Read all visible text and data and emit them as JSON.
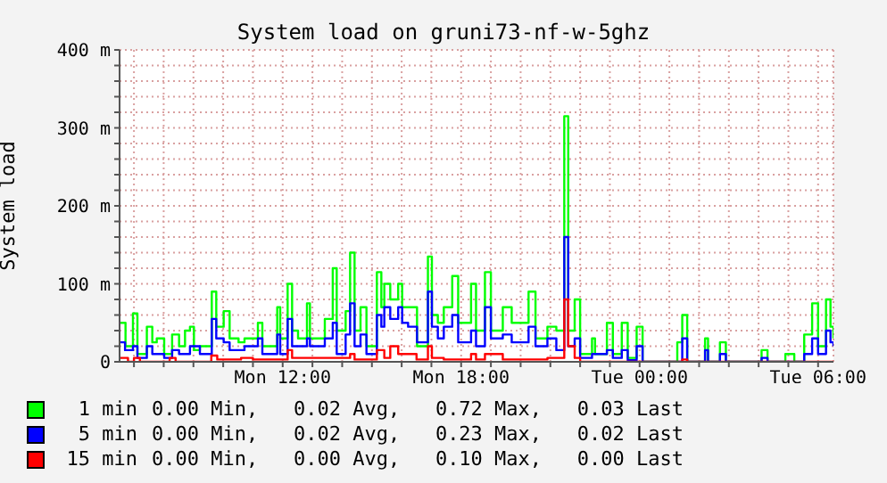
{
  "chart_data": {
    "type": "step",
    "title": "System load on gruni73-nf-w-5ghz",
    "ylabel": "System load",
    "xlim": [
      "--01-01T06:31",
      "--01-02T06:31"
    ],
    "ylim": [
      0,
      400
    ],
    "xticks": [
      {
        "value": "--01-01T07:00",
        "label": null
      },
      {
        "value": "--01-01T08:00",
        "label": null
      },
      {
        "value": "--01-01T09:00",
        "label": null
      },
      {
        "value": "--01-01T10:00",
        "label": null
      },
      {
        "value": "--01-01T11:00",
        "label": null
      },
      {
        "value": "--01-01T12:00",
        "label": "Mon 12:00"
      },
      {
        "value": "--01-01T13:00",
        "label": null
      },
      {
        "value": "--01-01T14:00",
        "label": null
      },
      {
        "value": "--01-01T15:00",
        "label": null
      },
      {
        "value": "--01-01T16:00",
        "label": null
      },
      {
        "value": "--01-01T17:00",
        "label": null
      },
      {
        "value": "--01-01T18:00",
        "label": "Mon 18:00"
      },
      {
        "value": "--01-01T19:00",
        "label": null
      },
      {
        "value": "--01-01T20:00",
        "label": null
      },
      {
        "value": "--01-01T21:00",
        "label": null
      },
      {
        "value": "--01-01T22:00",
        "label": null
      },
      {
        "value": "--01-01T23:00",
        "label": null
      },
      {
        "value": "--01-02T00:00",
        "label": "Tue 00:00"
      },
      {
        "value": "--01-02T01:00",
        "label": null
      },
      {
        "value": "--01-02T02:00",
        "label": null
      },
      {
        "value": "--01-02T03:00",
        "label": null
      },
      {
        "value": "--01-02T04:00",
        "label": null
      },
      {
        "value": "--01-02T05:00",
        "label": null
      },
      {
        "value": "--01-02T06:00",
        "label": "Tue 06:00"
      }
    ],
    "yticks": [
      0,
      {
        "value": 20,
        "label": null
      },
      {
        "value": 40,
        "label": null
      },
      {
        "value": 60,
        "label": null
      },
      {
        "value": 80,
        "label": null
      },
      {
        "value": 100,
        "label": "100 m"
      },
      {
        "value": 120,
        "label": null
      },
      {
        "value": 140,
        "label": null
      },
      {
        "value": 160,
        "label": null
      },
      {
        "value": 180,
        "label": null
      },
      {
        "value": 200,
        "label": "200 m"
      },
      {
        "value": 220,
        "label": null
      },
      {
        "value": 240,
        "label": null
      },
      {
        "value": 260,
        "label": null
      },
      {
        "value": 280,
        "label": null
      },
      {
        "value": 300,
        "label": "300 m"
      },
      {
        "value": 320,
        "label": null
      },
      {
        "value": 340,
        "label": null
      },
      {
        "value": 360,
        "label": null
      },
      {
        "value": 380,
        "label": null
      },
      {
        "value": 400,
        "label": "400 m"
      }
    ],
    "grid": true,
    "legend": "bottom",
    "annotations": [
      "0.00 Min,   0.02 Avg,   0.72 Max,   0.03 Last",
      "0.00 Min,   0.02 Avg,   0.23 Max,   0.02 Last",
      "0.00 Min,   0.00 Avg,   0.10 Max,   0.00 Last"
    ],
    "series": [
      {
        "name": "1 min",
        "color": "#00ff00",
        "x": [
          "--01-01T06:31",
          "--01-01T06:43",
          "--01-01T06:58",
          "--01-01T07:07",
          "--01-01T07:26",
          "--01-01T07:37",
          "--01-01T07:46",
          "--01-01T08:01",
          "--01-01T08:17",
          "--01-01T08:31",
          "--01-01T08:43",
          "--01-01T08:53",
          "--01-01T09:01",
          "--01-01T09:13",
          "--01-01T09:37",
          "--01-01T09:46",
          "--01-01T10:01",
          "--01-01T10:13",
          "--01-01T10:31",
          "--01-01T10:43",
          "--01-01T11:10",
          "--01-01T11:19",
          "--01-01T11:49",
          "--01-01T11:55",
          "--01-01T12:10",
          "--01-01T12:19",
          "--01-01T12:31",
          "--01-01T12:49",
          "--01-01T12:55",
          "--01-01T13:25",
          "--01-01T13:41",
          "--01-01T13:49",
          "--01-01T14:07",
          "--01-01T14:16",
          "--01-01T14:25",
          "--01-01T14:37",
          "--01-01T14:49",
          "--01-01T15:10",
          "--01-01T15:19",
          "--01-01T15:25",
          "--01-01T15:37",
          "--01-01T15:53",
          "--01-01T16:01",
          "--01-01T16:13",
          "--01-01T16:31",
          "--01-01T16:53",
          "--01-01T17:01",
          "--01-01T17:13",
          "--01-01T17:25",
          "--01-01T17:42",
          "--01-01T17:54",
          "--01-01T18:20",
          "--01-01T18:30",
          "--01-01T18:48",
          "--01-01T19:00",
          "--01-01T19:24",
          "--01-01T19:42",
          "--01-01T20:16",
          "--01-01T20:30",
          "--01-01T20:54",
          "--01-01T21:12",
          "--01-01T21:28",
          "--01-01T21:36",
          "--01-01T21:49",
          "--01-01T22:00",
          "--01-01T22:24",
          "--01-01T22:30",
          "--01-01T22:54",
          "--01-01T23:06",
          "--01-01T23:24",
          "--01-01T23:36",
          "--01-01T23:54",
          "--01-02T00:06",
          "--01-02T01:16",
          "--01-02T01:26",
          "--01-02T01:36",
          "--01-02T02:12",
          "--01-02T02:18",
          "--01-02T02:42",
          "--01-02T02:54",
          "--01-02T04:06",
          "--01-02T04:18",
          "--01-02T04:54",
          "--01-02T05:12",
          "--01-02T05:32",
          "--01-02T05:48",
          "--01-02T06:00",
          "--01-02T06:16",
          "--01-02T06:25",
          "--01-02T06:31"
        ],
        "values": [
          50,
          20,
          62,
          10,
          45,
          25,
          30,
          10,
          35,
          20,
          40,
          45,
          15,
          20,
          90,
          45,
          65,
          30,
          25,
          30,
          50,
          20,
          70,
          30,
          100,
          40,
          30,
          75,
          30,
          55,
          120,
          40,
          65,
          140,
          40,
          70,
          20,
          115,
          70,
          100,
          80,
          100,
          70,
          70,
          20,
          135,
          60,
          50,
          70,
          110,
          50,
          100,
          40,
          115,
          40,
          70,
          50,
          90,
          30,
          45,
          40,
          315,
          40,
          80,
          10,
          30,
          10,
          50,
          10,
          50,
          5,
          45,
          0,
          25,
          60,
          0,
          30,
          0,
          25,
          0,
          15,
          0,
          10,
          0,
          35,
          75,
          20,
          80,
          45,
          30
        ]
      },
      {
        "name": "5 min",
        "color": "#0000ff",
        "x": [
          "--01-01T06:31",
          "--01-01T06:42",
          "--01-01T06:58",
          "--01-01T07:07",
          "--01-01T07:26",
          "--01-01T07:37",
          "--01-01T08:01",
          "--01-01T08:17",
          "--01-01T08:31",
          "--01-01T08:53",
          "--01-01T09:13",
          "--01-01T09:37",
          "--01-01T09:46",
          "--01-01T10:01",
          "--01-01T10:13",
          "--01-01T10:43",
          "--01-01T11:10",
          "--01-01T11:19",
          "--01-01T11:49",
          "--01-01T11:55",
          "--01-01T12:10",
          "--01-01T12:19",
          "--01-01T12:49",
          "--01-01T12:55",
          "--01-01T13:25",
          "--01-01T13:41",
          "--01-01T13:49",
          "--01-01T14:07",
          "--01-01T14:16",
          "--01-01T14:25",
          "--01-01T14:37",
          "--01-01T14:49",
          "--01-01T15:10",
          "--01-01T15:19",
          "--01-01T15:25",
          "--01-01T15:37",
          "--01-01T15:53",
          "--01-01T16:01",
          "--01-01T16:13",
          "--01-01T16:31",
          "--01-01T16:53",
          "--01-01T17:01",
          "--01-01T17:13",
          "--01-01T17:25",
          "--01-01T17:42",
          "--01-01T17:54",
          "--01-01T18:20",
          "--01-01T18:30",
          "--01-01T18:48",
          "--01-01T19:00",
          "--01-01T19:24",
          "--01-01T19:42",
          "--01-01T20:16",
          "--01-01T20:30",
          "--01-01T20:54",
          "--01-01T21:12",
          "--01-01T21:28",
          "--01-01T21:36",
          "--01-01T21:49",
          "--01-01T22:00",
          "--01-01T22:24",
          "--01-01T22:54",
          "--01-01T23:06",
          "--01-01T23:24",
          "--01-01T23:36",
          "--01-01T23:54",
          "--01-02T00:06",
          "--01-02T01:26",
          "--01-02T01:36",
          "--01-02T02:12",
          "--01-02T02:18",
          "--01-02T02:42",
          "--01-02T02:54",
          "--01-02T04:06",
          "--01-02T04:18",
          "--01-02T05:32",
          "--01-02T05:48",
          "--01-02T06:00",
          "--01-02T06:16",
          "--01-02T06:25",
          "--01-02T06:31"
        ],
        "values": [
          25,
          15,
          20,
          5,
          20,
          10,
          5,
          15,
          10,
          20,
          10,
          55,
          30,
          25,
          15,
          20,
          30,
          10,
          35,
          10,
          55,
          20,
          30,
          20,
          30,
          50,
          10,
          35,
          75,
          20,
          35,
          10,
          60,
          45,
          70,
          55,
          70,
          50,
          45,
          25,
          90,
          45,
          30,
          45,
          60,
          25,
          40,
          20,
          70,
          30,
          35,
          25,
          45,
          20,
          30,
          15,
          160,
          20,
          30,
          5,
          10,
          15,
          5,
          15,
          2,
          20,
          0,
          30,
          0,
          15,
          0,
          10,
          0,
          5,
          0,
          10,
          30,
          10,
          40,
          25,
          20
        ]
      },
      {
        "name": "15 min",
        "color": "#ff0000",
        "x": [
          "--01-01T06:31",
          "--01-01T06:48",
          "--01-01T07:00",
          "--01-01T07:12",
          "--01-01T08:12",
          "--01-01T08:24",
          "--01-01T09:36",
          "--01-01T09:48",
          "--01-01T10:36",
          "--01-01T11:00",
          "--01-01T12:10",
          "--01-01T12:19",
          "--01-01T12:49",
          "--01-01T13:36",
          "--01-01T14:16",
          "--01-01T14:25",
          "--01-01T15:10",
          "--01-01T15:25",
          "--01-01T15:37",
          "--01-01T15:53",
          "--01-01T16:30",
          "--01-01T16:53",
          "--01-01T17:01",
          "--01-01T17:25",
          "--01-01T18:20",
          "--01-01T18:30",
          "--01-01T18:48",
          "--01-01T19:24",
          "--01-01T20:54",
          "--01-01T21:28",
          "--01-01T21:36",
          "--01-01T21:49",
          "--01-01T22:00",
          "--01-02T01:26",
          "--01-02T01:36",
          "--01-02T06:31"
        ],
        "values": [
          5,
          0,
          5,
          0,
          5,
          0,
          8,
          3,
          5,
          3,
          15,
          5,
          5,
          5,
          10,
          3,
          15,
          5,
          20,
          10,
          3,
          20,
          5,
          3,
          10,
          3,
          10,
          3,
          5,
          80,
          20,
          5,
          0,
          3,
          0,
          0
        ]
      }
    ]
  }
}
